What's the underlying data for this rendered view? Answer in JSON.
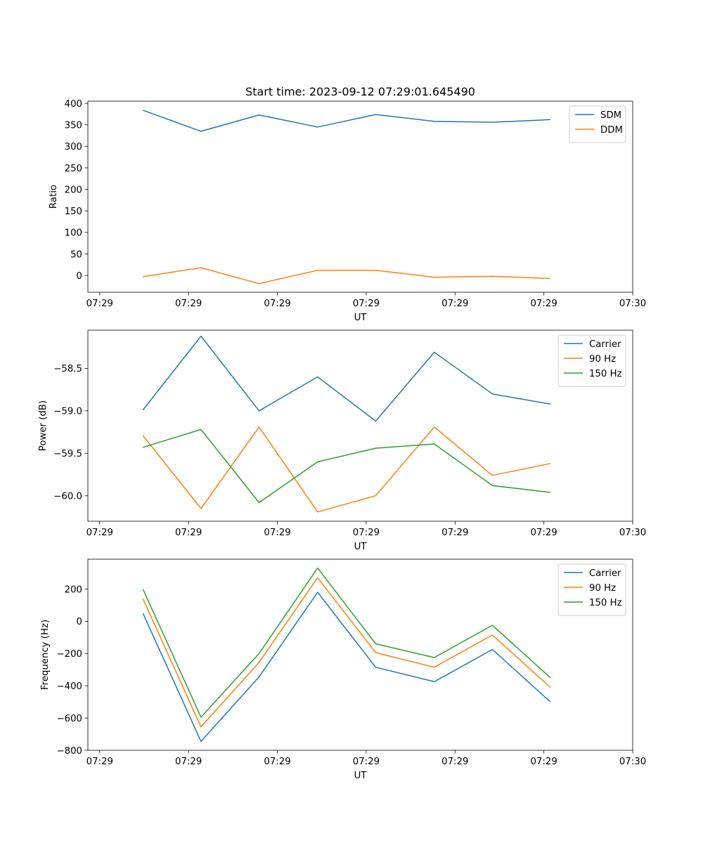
{
  "chart_data": [
    {
      "type": "line",
      "title": "Start time: 2023-09-12 07:29:01.645490",
      "xlabel": "UT",
      "ylabel": "Ratio",
      "xlim": [
        0,
        92
      ],
      "xticks": [
        2,
        17,
        32,
        47,
        62,
        77,
        92
      ],
      "xtick_labels": [
        "07:29",
        "07:29",
        "07:29",
        "07:29",
        "07:29",
        "07:29",
        "07:30"
      ],
      "ylim": [
        -39,
        405
      ],
      "yticks": [
        0,
        50,
        100,
        150,
        200,
        250,
        300,
        350,
        400
      ],
      "ytick_labels": [
        "0",
        "50",
        "100",
        "150",
        "200",
        "250",
        "300",
        "350",
        "400"
      ],
      "x": [
        9.3,
        19.1,
        28.9,
        38.8,
        48.6,
        58.5,
        68.3,
        78.1
      ],
      "series": [
        {
          "name": "SDM",
          "color": "#1f77b4",
          "values": [
            384,
            335,
            373,
            345,
            374,
            358,
            356,
            362
          ]
        },
        {
          "name": "DDM",
          "color": "#ff7f0e",
          "values": [
            -3,
            18,
            -19,
            12,
            12,
            -4,
            -2,
            -7
          ]
        }
      ],
      "legend": "top-right",
      "grid": false
    },
    {
      "type": "line",
      "title": "",
      "xlabel": "UT",
      "ylabel": "Power (dB)",
      "xlim": [
        0,
        92
      ],
      "xticks": [
        2,
        17,
        32,
        47,
        62,
        77,
        92
      ],
      "xtick_labels": [
        "07:29",
        "07:29",
        "07:29",
        "07:29",
        "07:29",
        "07:29",
        "07:30"
      ],
      "ylim": [
        -60.3,
        -58.05
      ],
      "yticks": [
        -60.0,
        -59.5,
        -59.0,
        -58.5
      ],
      "ytick_labels": [
        "−60.0",
        "−59.5",
        "−59.0",
        "−58.5"
      ],
      "x": [
        9.3,
        19.1,
        28.9,
        38.8,
        48.6,
        58.5,
        68.3,
        78.1
      ],
      "series": [
        {
          "name": "Carrier",
          "color": "#1f77b4",
          "values": [
            -58.99,
            -58.12,
            -59.0,
            -58.6,
            -59.12,
            -58.31,
            -58.8,
            -58.92
          ]
        },
        {
          "name": "90 Hz",
          "color": "#ff7f0e",
          "values": [
            -59.29,
            -60.15,
            -59.19,
            -60.19,
            -60.0,
            -59.19,
            -59.76,
            -59.62
          ]
        },
        {
          "name": "150 Hz",
          "color": "#2ca02c",
          "values": [
            -59.43,
            -59.22,
            -60.08,
            -59.6,
            -59.44,
            -59.39,
            -59.88,
            -59.96
          ]
        }
      ],
      "legend": "top-right",
      "grid": false
    },
    {
      "type": "line",
      "title": "",
      "xlabel": "UT",
      "ylabel": "Frequency (Hz)",
      "xlim": [
        0,
        92
      ],
      "xticks": [
        2,
        17,
        32,
        47,
        62,
        77,
        92
      ],
      "xtick_labels": [
        "07:29",
        "07:29",
        "07:29",
        "07:29",
        "07:29",
        "07:29",
        "07:30"
      ],
      "ylim": [
        -800,
        385
      ],
      "yticks": [
        -800,
        -600,
        -400,
        -200,
        0,
        200
      ],
      "ytick_labels": [
        "−800",
        "−600",
        "−400",
        "−200",
        "0",
        "200"
      ],
      "x": [
        9.3,
        19.1,
        28.9,
        38.8,
        48.6,
        58.5,
        68.3,
        78.1
      ],
      "series": [
        {
          "name": "Carrier",
          "color": "#1f77b4",
          "values": [
            50,
            -745,
            -345,
            180,
            -285,
            -375,
            -175,
            -500
          ]
        },
        {
          "name": "90 Hz",
          "color": "#ff7f0e",
          "values": [
            140,
            -655,
            -255,
            270,
            -195,
            -285,
            -85,
            -410
          ]
        },
        {
          "name": "150 Hz",
          "color": "#2ca02c",
          "values": [
            200,
            -595,
            -200,
            330,
            -140,
            -225,
            -25,
            -350
          ]
        }
      ],
      "legend": "top-right",
      "grid": false
    }
  ]
}
